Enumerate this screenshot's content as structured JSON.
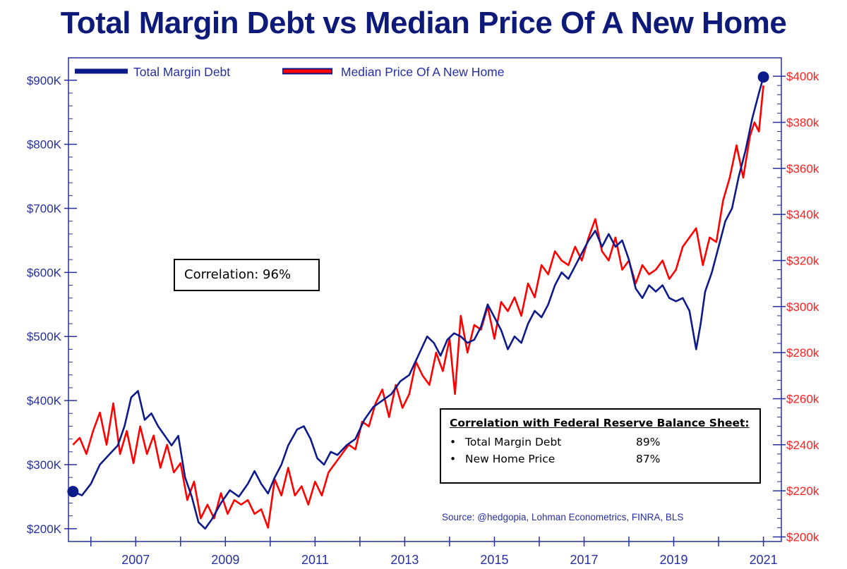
{
  "chart_data": {
    "type": "line",
    "title": "Total Margin Debt vs Median Price Of A New Home",
    "legend": {
      "placement": "top-left"
    },
    "x_ticks": [
      "2007",
      "2009",
      "2011",
      "2013",
      "2015",
      "2017",
      "2019",
      "2021"
    ],
    "xlim": [
      2006.0,
      2021.9
    ],
    "y_left": {
      "ticks": [
        "$200K",
        "$300K",
        "$400K",
        "$500K",
        "$600K",
        "$700K",
        "$800K",
        "$900K"
      ],
      "ylim": [
        180,
        935
      ],
      "unit": "K"
    },
    "y_right": {
      "ticks": [
        "$200k",
        "$220k",
        "$240k",
        "$260k",
        "$280k",
        "$300k",
        "$320k",
        "$340k",
        "$360k",
        "$380k",
        "$400k"
      ],
      "ylim": [
        198,
        408
      ],
      "unit": "k"
    },
    "series": [
      {
        "name": "Total Margin Debt",
        "axis": "left",
        "color": "#0d1a8a",
        "x": [
          2006.1,
          2006.3,
          2006.5,
          2006.7,
          2006.9,
          2007.1,
          2007.25,
          2007.4,
          2007.55,
          2007.7,
          2007.85,
          2008.0,
          2008.15,
          2008.3,
          2008.45,
          2008.6,
          2008.75,
          2008.9,
          2009.05,
          2009.2,
          2009.4,
          2009.6,
          2009.8,
          2010.0,
          2010.15,
          2010.3,
          2010.45,
          2010.6,
          2010.75,
          2010.9,
          2011.1,
          2011.25,
          2011.4,
          2011.55,
          2011.7,
          2011.85,
          2012.0,
          2012.2,
          2012.4,
          2012.6,
          2012.8,
          2013.0,
          2013.2,
          2013.4,
          2013.6,
          2013.8,
          2014.0,
          2014.15,
          2014.3,
          2014.45,
          2014.6,
          2014.75,
          2014.9,
          2015.05,
          2015.2,
          2015.35,
          2015.5,
          2015.65,
          2015.8,
          2015.95,
          2016.1,
          2016.25,
          2016.4,
          2016.55,
          2016.7,
          2016.85,
          2017.0,
          2017.15,
          2017.3,
          2017.45,
          2017.6,
          2017.75,
          2017.9,
          2018.05,
          2018.2,
          2018.35,
          2018.5,
          2018.65,
          2018.8,
          2018.95,
          2019.1,
          2019.25,
          2019.4,
          2019.55,
          2019.7,
          2019.85,
          2020.0,
          2020.1,
          2020.2,
          2020.35,
          2020.5,
          2020.65,
          2020.8,
          2020.95,
          2021.1,
          2021.25,
          2021.4,
          2021.5
        ],
        "values": [
          258,
          252,
          270,
          300,
          315,
          330,
          360,
          405,
          415,
          370,
          380,
          360,
          345,
          330,
          345,
          280,
          250,
          210,
          200,
          215,
          240,
          260,
          250,
          270,
          290,
          270,
          255,
          280,
          300,
          330,
          355,
          360,
          340,
          310,
          300,
          320,
          315,
          330,
          340,
          370,
          390,
          400,
          410,
          430,
          440,
          470,
          500,
          490,
          470,
          495,
          505,
          500,
          490,
          495,
          515,
          550,
          530,
          510,
          480,
          500,
          490,
          520,
          540,
          530,
          550,
          580,
          600,
          590,
          610,
          630,
          650,
          665,
          640,
          660,
          640,
          650,
          620,
          575,
          560,
          580,
          570,
          580,
          560,
          555,
          560,
          540,
          480,
          520,
          570,
          600,
          640,
          680,
          700,
          750,
          790,
          840,
          880,
          905
        ]
      },
      {
        "name": "Median Price Of A New Home",
        "axis": "right",
        "color": "#ff0000",
        "x": [
          2006.1,
          2006.25,
          2006.4,
          2006.55,
          2006.7,
          2006.85,
          2007.0,
          2007.15,
          2007.3,
          2007.45,
          2007.6,
          2007.75,
          2007.9,
          2008.05,
          2008.2,
          2008.35,
          2008.5,
          2008.65,
          2008.8,
          2008.95,
          2009.1,
          2009.25,
          2009.4,
          2009.55,
          2009.7,
          2009.85,
          2010.0,
          2010.15,
          2010.3,
          2010.45,
          2010.6,
          2010.75,
          2010.9,
          2011.05,
          2011.2,
          2011.35,
          2011.5,
          2011.65,
          2011.8,
          2011.95,
          2012.1,
          2012.25,
          2012.4,
          2012.55,
          2012.7,
          2012.85,
          2013.0,
          2013.15,
          2013.3,
          2013.45,
          2013.6,
          2013.75,
          2013.9,
          2014.05,
          2014.2,
          2014.35,
          2014.5,
          2014.62,
          2014.75,
          2014.9,
          2015.05,
          2015.2,
          2015.35,
          2015.5,
          2015.65,
          2015.8,
          2015.95,
          2016.1,
          2016.25,
          2016.4,
          2016.55,
          2016.7,
          2016.85,
          2017.0,
          2017.15,
          2017.3,
          2017.45,
          2017.6,
          2017.75,
          2017.9,
          2018.05,
          2018.2,
          2018.35,
          2018.5,
          2018.65,
          2018.8,
          2018.95,
          2019.1,
          2019.25,
          2019.4,
          2019.55,
          2019.7,
          2019.85,
          2020.0,
          2020.15,
          2020.3,
          2020.45,
          2020.6,
          2020.75,
          2020.9,
          2021.05,
          2021.2,
          2021.3,
          2021.4,
          2021.5
        ],
        "values": [
          240,
          243,
          236,
          246,
          254,
          240,
          258,
          236,
          246,
          232,
          248,
          236,
          244,
          230,
          240,
          228,
          232,
          216,
          224,
          208,
          214,
          208,
          219,
          210,
          216,
          214,
          216,
          210,
          212,
          204,
          225,
          218,
          230,
          218,
          222,
          214,
          224,
          218,
          228,
          232,
          236,
          240,
          238,
          250,
          248,
          258,
          264,
          252,
          266,
          256,
          262,
          276,
          270,
          266,
          280,
          272,
          286,
          262,
          296,
          280,
          292,
          290,
          300,
          286,
          302,
          298,
          304,
          296,
          310,
          304,
          318,
          314,
          324,
          320,
          318,
          326,
          320,
          330,
          338,
          324,
          320,
          330,
          316,
          320,
          310,
          318,
          314,
          316,
          320,
          312,
          316,
          326,
          330,
          334,
          318,
          330,
          328,
          346,
          356,
          370,
          356,
          374,
          380,
          376,
          396
        ]
      }
    ],
    "end_markers": [
      {
        "series": "Total Margin Debt",
        "x": 2006.1,
        "value": 258
      },
      {
        "series": "Total Margin Debt",
        "x": 2021.5,
        "value": 905
      }
    ]
  },
  "annotations": {
    "correlation": "Correlation: 96%",
    "fed_box": {
      "title": "Correlation with Federal Reserve Balance Sheet:",
      "rows": [
        {
          "bullet": "•",
          "label": "Total Margin Debt",
          "value": "89%"
        },
        {
          "bullet": "•",
          "label": "New Home Price",
          "value": "87%"
        }
      ]
    },
    "source": "Source: @hedgopia, Lohman Econometrics, FINRA, BLS"
  }
}
